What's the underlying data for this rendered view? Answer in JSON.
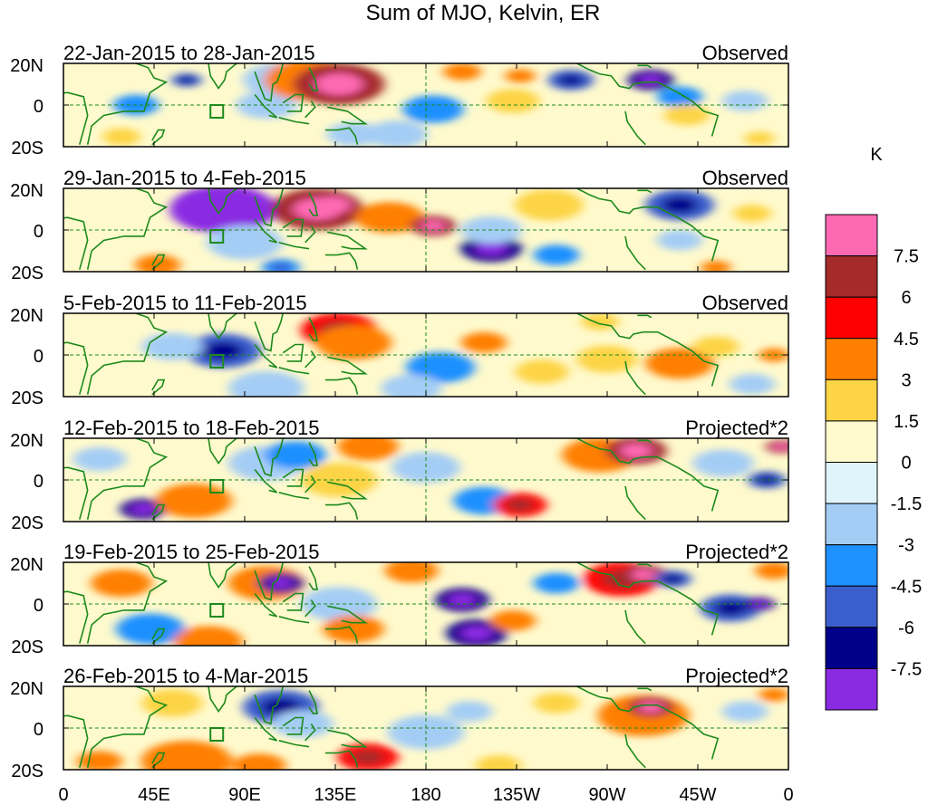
{
  "chart_data": {
    "type": "heatmap",
    "title": "Sum of MJO, Kelvin, ER",
    "colorbar": {
      "unit": "K",
      "colors": [
        "#8a2be2",
        "#00008b",
        "#3a5fcd",
        "#1e90ff",
        "#a4cdf5",
        "#e0f4fb",
        "#fffacd",
        "#fdd445",
        "#ff7f00",
        "#ff0000",
        "#a52a2a",
        "#ff69b4"
      ],
      "tick_labels": [
        "-7.5",
        "-6",
        "-4.5",
        "-3",
        "-1.5",
        "0",
        "1.5",
        "3",
        "4.5",
        "6",
        "7.5"
      ]
    },
    "x_ticks": [
      "0",
      "45E",
      "90E",
      "135E",
      "180",
      "135W",
      "90W",
      "45W",
      "0"
    ],
    "y_ticks": [
      "20N",
      "0",
      "20S"
    ],
    "panels": [
      {
        "period": "22-Jan-2015 to 28-Jan-2015",
        "type_label": "Observed",
        "blobs": [
          [
            0.08,
            0.88,
            5,
            2.2
          ],
          [
            0.17,
            0.2,
            4,
            -6
          ],
          [
            0.1,
            0.5,
            6,
            -3.5
          ],
          [
            0.3,
            0.2,
            10,
            -3
          ],
          [
            0.28,
            0.5,
            8,
            -3
          ],
          [
            0.34,
            0.2,
            12,
            3.5
          ],
          [
            0.38,
            0.25,
            12,
            6
          ],
          [
            0.55,
            0.1,
            5,
            4
          ],
          [
            0.4,
            0.85,
            7,
            -3
          ],
          [
            0.51,
            0.55,
            8,
            -4
          ],
          [
            0.46,
            0.85,
            8,
            -2
          ],
          [
            0.62,
            0.45,
            7,
            2.5
          ],
          [
            0.7,
            0.2,
            6,
            -5
          ],
          [
            0.81,
            0.2,
            6,
            -7
          ],
          [
            0.85,
            0.4,
            6,
            -4
          ],
          [
            0.63,
            0.15,
            4,
            4
          ],
          [
            0.86,
            0.62,
            6,
            2
          ],
          [
            0.94,
            0.45,
            6,
            -2
          ],
          [
            0.96,
            0.9,
            4,
            2
          ]
        ]
      },
      {
        "period": "29-Jan-2015 to 4-Feb-2015",
        "type_label": "Observed",
        "blobs": [
          [
            0.22,
            0.25,
            14,
            -7.6
          ],
          [
            0.35,
            0.25,
            12,
            6
          ],
          [
            0.37,
            0.2,
            5,
            8
          ],
          [
            0.25,
            0.65,
            10,
            -3
          ],
          [
            0.45,
            0.35,
            9,
            3
          ],
          [
            0.51,
            0.45,
            6,
            6
          ],
          [
            0.59,
            0.72,
            8,
            -6.5
          ],
          [
            0.59,
            0.5,
            8,
            -3
          ],
          [
            0.68,
            0.8,
            6,
            -4
          ],
          [
            0.67,
            0.2,
            9,
            2
          ],
          [
            0.85,
            0.2,
            9,
            -5
          ],
          [
            0.85,
            0.62,
            6,
            -3
          ],
          [
            0.9,
            0.95,
            4,
            3.5
          ],
          [
            0.13,
            0.92,
            6,
            4
          ],
          [
            0.95,
            0.3,
            5,
            2
          ],
          [
            0.3,
            0.95,
            5,
            -4.5
          ]
        ]
      },
      {
        "period": "5-Feb-2015 to 11-Feb-2015",
        "type_label": "Observed",
        "blobs": [
          [
            0.22,
            0.45,
            10,
            -5
          ],
          [
            0.38,
            0.2,
            10,
            4.5
          ],
          [
            0.4,
            0.35,
            10,
            3
          ],
          [
            0.28,
            0.9,
            10,
            -2.5
          ],
          [
            0.52,
            0.65,
            9,
            -3.5
          ],
          [
            0.58,
            0.35,
            6,
            3
          ],
          [
            0.66,
            0.7,
            7,
            2
          ],
          [
            0.74,
            0.1,
            5,
            2
          ],
          [
            0.75,
            0.55,
            8,
            2.5
          ],
          [
            0.85,
            0.6,
            9,
            3
          ],
          [
            0.9,
            0.4,
            6,
            2
          ],
          [
            0.98,
            0.5,
            4,
            3.5
          ],
          [
            0.15,
            0.4,
            8,
            -2
          ],
          [
            0.48,
            0.9,
            8,
            -2.5
          ],
          [
            0.95,
            0.85,
            6,
            -2
          ]
        ]
      },
      {
        "period": "12-Feb-2015 to 18-Feb-2015",
        "type_label": "Projected*2",
        "blobs": [
          [
            0.05,
            0.25,
            7,
            -3
          ],
          [
            0.11,
            0.85,
            6,
            -6.5
          ],
          [
            0.18,
            0.75,
            10,
            3
          ],
          [
            0.28,
            0.3,
            10,
            -2.5
          ],
          [
            0.32,
            0.2,
            8,
            -4
          ],
          [
            0.38,
            0.5,
            10,
            2
          ],
          [
            0.42,
            0.1,
            8,
            4
          ],
          [
            0.5,
            0.35,
            9,
            -3
          ],
          [
            0.58,
            0.75,
            8,
            -4
          ],
          [
            0.63,
            0.8,
            7,
            4.5
          ],
          [
            0.74,
            0.2,
            10,
            4
          ],
          [
            0.79,
            0.15,
            8,
            6
          ],
          [
            0.91,
            0.3,
            8,
            -3
          ],
          [
            0.97,
            0.5,
            5,
            -5
          ],
          [
            0.99,
            0.1,
            4,
            6
          ]
        ]
      },
      {
        "period": "19-Feb-2015 to 25-Feb-2015",
        "type_label": "Projected*2",
        "blobs": [
          [
            0.08,
            0.25,
            8,
            3
          ],
          [
            0.12,
            0.8,
            9,
            -4
          ],
          [
            0.2,
            0.95,
            9,
            3.5
          ],
          [
            0.28,
            0.25,
            10,
            3
          ],
          [
            0.3,
            0.25,
            6,
            -7
          ],
          [
            0.38,
            0.5,
            10,
            -3
          ],
          [
            0.4,
            0.8,
            8,
            3.5
          ],
          [
            0.48,
            0.1,
            7,
            3
          ],
          [
            0.55,
            0.45,
            7,
            -7
          ],
          [
            0.57,
            0.85,
            8,
            -6.5
          ],
          [
            0.62,
            0.7,
            6,
            3
          ],
          [
            0.68,
            0.25,
            6,
            -4
          ],
          [
            0.77,
            0.2,
            10,
            4.5
          ],
          [
            0.8,
            0.15,
            6,
            7
          ],
          [
            0.84,
            0.2,
            5,
            -6
          ],
          [
            0.92,
            0.55,
            8,
            -5
          ],
          [
            0.96,
            0.5,
            4,
            -7
          ],
          [
            0.98,
            0.1,
            5,
            4
          ]
        ]
      },
      {
        "period": "26-Feb-2015 to 4-Mar-2015",
        "type_label": "Projected*2",
        "blobs": [
          [
            0.05,
            0.9,
            6,
            3
          ],
          [
            0.15,
            0.2,
            8,
            2
          ],
          [
            0.17,
            0.9,
            12,
            3
          ],
          [
            0.27,
            0.95,
            7,
            4
          ],
          [
            0.3,
            0.25,
            10,
            -5
          ],
          [
            0.33,
            0.45,
            8,
            -2.5
          ],
          [
            0.42,
            0.85,
            8,
            4.5
          ],
          [
            0.5,
            0.55,
            10,
            -3
          ],
          [
            0.56,
            0.3,
            6,
            -2
          ],
          [
            0.6,
            0.95,
            6,
            2
          ],
          [
            0.68,
            0.2,
            6,
            2
          ],
          [
            0.8,
            0.35,
            12,
            4
          ],
          [
            0.81,
            0.25,
            6,
            6
          ],
          [
            0.94,
            0.3,
            6,
            -3
          ],
          [
            0.98,
            0.1,
            4,
            4
          ]
        ]
      }
    ]
  }
}
